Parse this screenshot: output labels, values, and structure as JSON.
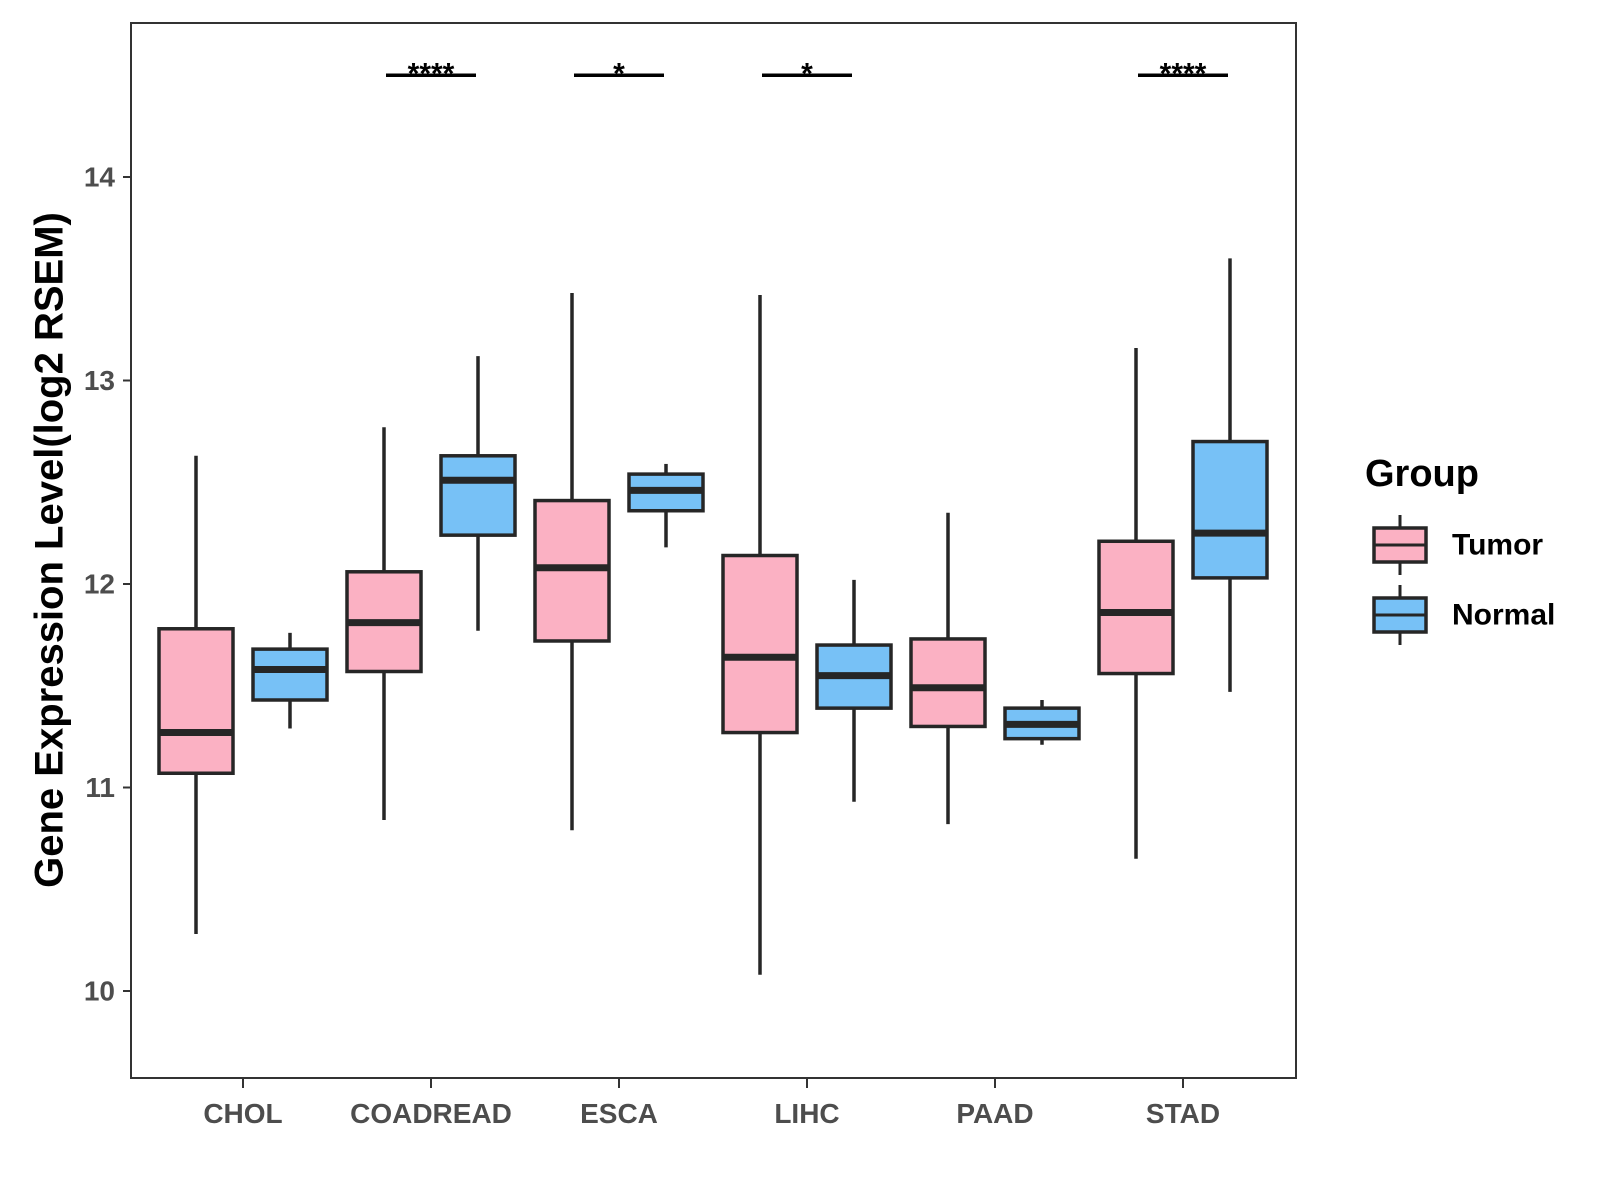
{
  "chart_data": {
    "type": "boxplot",
    "title": "",
    "xlabel": "",
    "ylabel": "Gene Expression Level(log2 RSEM)",
    "ylim": [
      9.5,
      14.7
    ],
    "y_ticks": [
      10,
      11,
      12,
      13,
      14
    ],
    "categories": [
      "CHOL",
      "COADREAD",
      "ESCA",
      "LIHC",
      "PAAD",
      "STAD"
    ],
    "grid": false,
    "legend": {
      "title": "Group",
      "position": "right",
      "entries": [
        "Tumor",
        "Normal"
      ]
    },
    "colors": {
      "Tumor": "#FBB1C3",
      "Normal": "#77C1F6",
      "outline": "#262626"
    },
    "series": [
      {
        "name": "Tumor",
        "boxes": [
          {
            "category": "CHOL",
            "min": 10.28,
            "q1": 11.07,
            "median": 11.27,
            "q3": 11.78,
            "max": 12.63
          },
          {
            "category": "COADREAD",
            "min": 10.84,
            "q1": 11.57,
            "median": 11.81,
            "q3": 12.06,
            "max": 12.77
          },
          {
            "category": "ESCA",
            "min": 10.79,
            "q1": 11.72,
            "median": 12.08,
            "q3": 12.41,
            "max": 13.43
          },
          {
            "category": "LIHC",
            "min": 10.08,
            "q1": 11.27,
            "median": 11.64,
            "q3": 12.14,
            "max": 13.42
          },
          {
            "category": "PAAD",
            "min": 10.82,
            "q1": 11.3,
            "median": 11.49,
            "q3": 11.73,
            "max": 12.35
          },
          {
            "category": "STAD",
            "min": 10.65,
            "q1": 11.56,
            "median": 11.86,
            "q3": 12.21,
            "max": 13.16
          }
        ]
      },
      {
        "name": "Normal",
        "boxes": [
          {
            "category": "CHOL",
            "min": 11.29,
            "q1": 11.43,
            "median": 11.58,
            "q3": 11.68,
            "max": 11.76
          },
          {
            "category": "COADREAD",
            "min": 11.77,
            "q1": 12.24,
            "median": 12.51,
            "q3": 12.63,
            "max": 13.12
          },
          {
            "category": "ESCA",
            "min": 12.18,
            "q1": 12.36,
            "median": 12.46,
            "q3": 12.54,
            "max": 12.59
          },
          {
            "category": "LIHC",
            "min": 10.93,
            "q1": 11.39,
            "median": 11.55,
            "q3": 11.7,
            "max": 12.02
          },
          {
            "category": "PAAD",
            "min": 11.21,
            "q1": 11.24,
            "median": 11.31,
            "q3": 11.39,
            "max": 11.43
          },
          {
            "category": "STAD",
            "min": 11.47,
            "q1": 12.03,
            "median": 12.25,
            "q3": 12.7,
            "max": 13.6
          }
        ]
      }
    ],
    "significance": [
      {
        "category": "COADREAD",
        "label": "****",
        "y": 14.5
      },
      {
        "category": "ESCA",
        "label": "*",
        "y": 14.5
      },
      {
        "category": "LIHC",
        "label": "*",
        "y": 14.5
      },
      {
        "category": "STAD",
        "label": "****",
        "y": 14.5
      }
    ]
  }
}
